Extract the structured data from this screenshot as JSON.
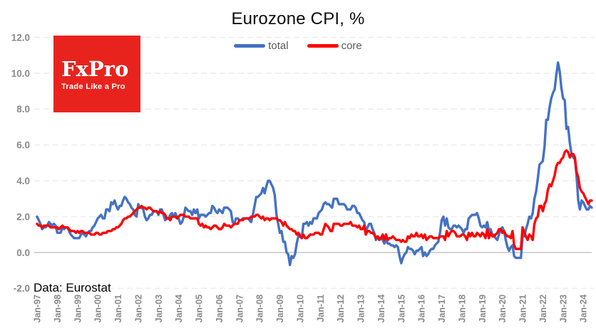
{
  "page": {
    "background": "#ffffff"
  },
  "logo": {
    "name": "FxPro",
    "tagline": "Trade Like a Pro",
    "bg_color": "#e8231e",
    "text_color": "#ffffff"
  },
  "chart_data": {
    "type": "line",
    "title": "Eurozone CPI, %",
    "source_note": "Data: Eurostat",
    "frequency": "monthly",
    "x_start": "Jan-1997",
    "x_end": "Jun-2024",
    "legend_position": "top-center",
    "grid": "horizontal-dashed",
    "ylim": [
      -2,
      12
    ],
    "y_ticks": [
      {
        "label": "-2.0",
        "value": -2
      },
      {
        "label": "0.0",
        "value": 0
      },
      {
        "label": "2.0",
        "value": 2
      },
      {
        "label": "4.0",
        "value": 4
      },
      {
        "label": "6.0",
        "value": 6
      },
      {
        "label": "8.0",
        "value": 8
      },
      {
        "label": "10.0",
        "value": 10
      },
      {
        "label": "12.0",
        "value": 12
      }
    ],
    "x_tick_labels": [
      "Jan-97",
      "Jan-98",
      "Jan-99",
      "Jan-00",
      "Jan-01",
      "Jan-02",
      "Jan-03",
      "Jan-04",
      "Jan-05",
      "Jan-06",
      "Jan-07",
      "Jan-08",
      "Jan-09",
      "Jan-10",
      "Jan-11",
      "Jan-12",
      "Jan-13",
      "Jan-14",
      "Jan-15",
      "Jan-16",
      "Jan-17",
      "Jan-18",
      "Jan-19",
      "Jan-20",
      "Jan-21",
      "Jan-22",
      "Jan-23",
      "Jan-24"
    ],
    "x_ticks_every_months": 12,
    "series": [
      {
        "name": "total",
        "color": "#4472C4",
        "values": [
          2.0,
          1.8,
          1.6,
          1.3,
          1.4,
          1.4,
          1.5,
          1.7,
          1.6,
          1.5,
          1.6,
          1.5,
          1.1,
          1.1,
          1.1,
          1.4,
          1.3,
          1.4,
          1.4,
          1.2,
          1.0,
          0.9,
          0.8,
          0.8,
          0.8,
          0.8,
          1.0,
          1.1,
          1.0,
          0.9,
          1.1,
          1.2,
          1.2,
          1.4,
          1.5,
          1.7,
          1.9,
          2.0,
          2.1,
          1.9,
          1.9,
          2.4,
          2.4,
          2.3,
          2.8,
          2.7,
          2.9,
          2.6,
          2.4,
          2.6,
          2.6,
          2.9,
          3.1,
          3.0,
          2.8,
          2.7,
          2.5,
          2.4,
          2.1,
          2.0,
          2.7,
          2.5,
          2.5,
          2.4,
          2.0,
          1.8,
          1.9,
          2.1,
          2.1,
          2.3,
          2.3,
          2.3,
          2.1,
          2.4,
          2.4,
          2.1,
          1.8,
          1.9,
          1.9,
          2.1,
          2.2,
          2.0,
          2.2,
          2.0,
          1.9,
          1.6,
          1.7,
          2.0,
          2.5,
          2.4,
          2.3,
          2.3,
          2.1,
          2.4,
          2.2,
          2.4,
          1.9,
          2.1,
          2.1,
          2.1,
          2.0,
          2.1,
          2.2,
          2.2,
          2.6,
          2.5,
          2.3,
          2.2,
          2.4,
          2.3,
          2.2,
          2.5,
          2.5,
          2.5,
          2.4,
          2.3,
          1.7,
          1.6,
          1.9,
          1.9,
          1.8,
          1.8,
          1.9,
          1.9,
          1.9,
          1.9,
          1.8,
          1.7,
          2.1,
          2.6,
          3.1,
          3.1,
          3.2,
          3.3,
          3.6,
          3.3,
          3.7,
          4.0,
          4.0,
          3.8,
          3.6,
          3.2,
          2.1,
          1.6,
          1.1,
          1.2,
          0.6,
          0.6,
          0.0,
          -0.1,
          -0.7,
          -0.2,
          -0.3,
          -0.1,
          0.5,
          0.9,
          1.0,
          0.8,
          1.6,
          1.6,
          1.7,
          1.5,
          1.7,
          1.6,
          1.9,
          1.9,
          1.9,
          2.2,
          2.3,
          2.4,
          2.7,
          2.8,
          2.7,
          2.7,
          2.6,
          2.5,
          3.0,
          3.0,
          3.0,
          2.7,
          2.7,
          2.7,
          2.7,
          2.6,
          2.4,
          2.4,
          2.4,
          2.6,
          2.6,
          2.5,
          2.2,
          2.2,
          2.0,
          1.8,
          1.7,
          1.2,
          1.4,
          1.6,
          1.6,
          1.3,
          1.1,
          0.7,
          0.9,
          0.8,
          0.8,
          0.7,
          0.5,
          0.7,
          0.5,
          0.5,
          0.4,
          0.4,
          0.3,
          0.4,
          0.3,
          -0.2,
          -0.6,
          -0.3,
          -0.1,
          0.0,
          0.3,
          0.2,
          0.2,
          0.1,
          -0.1,
          0.1,
          0.1,
          0.2,
          0.3,
          -0.2,
          0.0,
          -0.2,
          -0.1,
          0.1,
          0.2,
          0.2,
          0.4,
          0.5,
          0.6,
          1.1,
          1.8,
          2.0,
          1.5,
          1.9,
          1.4,
          1.3,
          1.3,
          1.5,
          1.5,
          1.4,
          1.5,
          1.4,
          1.3,
          1.1,
          1.3,
          1.3,
          1.9,
          2.0,
          2.1,
          2.1,
          2.1,
          2.2,
          1.9,
          1.5,
          1.4,
          1.5,
          1.4,
          1.7,
          1.2,
          1.3,
          1.0,
          1.0,
          0.8,
          0.7,
          1.0,
          1.3,
          1.4,
          1.2,
          0.7,
          0.3,
          0.1,
          0.3,
          0.4,
          -0.2,
          -0.3,
          -0.3,
          -0.3,
          -0.3,
          0.9,
          0.9,
          1.3,
          1.6,
          2.0,
          1.9,
          2.2,
          3.0,
          3.4,
          4.1,
          4.9,
          5.0,
          5.1,
          5.9,
          7.4,
          7.4,
          8.1,
          8.6,
          8.9,
          9.1,
          9.9,
          10.6,
          10.1,
          9.2,
          8.6,
          8.5,
          6.9,
          7.0,
          6.1,
          5.5,
          5.3,
          5.2,
          4.3,
          2.9,
          2.4,
          2.9,
          2.8,
          2.6,
          2.4,
          2.4,
          2.6,
          2.5
        ]
      },
      {
        "name": "core",
        "color": "#FF0000",
        "values": [
          1.6,
          1.5,
          1.5,
          1.4,
          1.5,
          1.5,
          1.5,
          1.5,
          1.4,
          1.4,
          1.4,
          1.4,
          1.4,
          1.3,
          1.4,
          1.5,
          1.4,
          1.4,
          1.4,
          1.3,
          1.2,
          1.2,
          1.2,
          1.1,
          1.2,
          1.1,
          1.2,
          1.2,
          1.1,
          1.1,
          1.1,
          1.1,
          1.0,
          1.0,
          1.0,
          1.1,
          1.1,
          1.0,
          1.0,
          1.1,
          1.1,
          1.1,
          1.2,
          1.2,
          1.2,
          1.3,
          1.3,
          1.4,
          1.4,
          1.5,
          1.6,
          1.8,
          1.9,
          1.9,
          2.0,
          2.0,
          2.1,
          2.2,
          2.3,
          2.4,
          2.5,
          2.5,
          2.6,
          2.5,
          2.5,
          2.4,
          2.5,
          2.5,
          2.4,
          2.3,
          2.3,
          2.3,
          2.2,
          2.3,
          2.2,
          2.2,
          2.1,
          1.9,
          1.9,
          1.8,
          2.0,
          2.0,
          2.0,
          1.9,
          2.0,
          2.1,
          2.1,
          2.1,
          2.0,
          2.0,
          2.0,
          1.9,
          1.9,
          1.9,
          1.9,
          1.9,
          1.6,
          1.5,
          1.6,
          1.4,
          1.5,
          1.4,
          1.4,
          1.3,
          1.4,
          1.5,
          1.5,
          1.4,
          1.3,
          1.3,
          1.4,
          1.6,
          1.5,
          1.5,
          1.5,
          1.4,
          1.5,
          1.6,
          1.6,
          1.6,
          1.8,
          1.8,
          1.8,
          1.9,
          1.9,
          1.9,
          1.9,
          2.0,
          2.0,
          2.0,
          2.1,
          2.1,
          2.0,
          1.9,
          2.0,
          1.8,
          1.9,
          1.9,
          1.8,
          1.9,
          1.9,
          1.9,
          1.9,
          1.8,
          1.8,
          1.7,
          1.5,
          1.7,
          1.5,
          1.4,
          1.3,
          1.3,
          1.2,
          1.2,
          1.0,
          1.1,
          0.9,
          0.8,
          1.0,
          0.8,
          0.8,
          0.9,
          1.0,
          1.0,
          1.0,
          1.1,
          1.1,
          1.1,
          1.0,
          1.0,
          1.3,
          1.6,
          1.5,
          1.4,
          1.2,
          1.2,
          1.6,
          1.6,
          1.6,
          1.6,
          1.5,
          1.5,
          1.6,
          1.6,
          1.6,
          1.6,
          1.7,
          1.5,
          1.5,
          1.5,
          1.4,
          1.5,
          1.3,
          1.3,
          1.5,
          1.0,
          1.2,
          1.2,
          1.1,
          1.1,
          1.0,
          0.8,
          0.9,
          0.7,
          0.8,
          1.0,
          0.7,
          1.0,
          0.7,
          0.8,
          0.8,
          0.9,
          0.8,
          0.7,
          0.7,
          0.7,
          0.6,
          0.7,
          0.6,
          0.6,
          0.9,
          0.8,
          1.0,
          0.9,
          0.9,
          1.1,
          0.9,
          0.9,
          1.0,
          0.8,
          1.0,
          0.7,
          0.8,
          0.9,
          0.9,
          0.8,
          0.8,
          0.8,
          0.8,
          0.9,
          0.9,
          0.9,
          0.7,
          1.2,
          0.9,
          1.1,
          1.2,
          1.2,
          1.1,
          0.9,
          0.9,
          0.9,
          1.0,
          1.0,
          0.9,
          0.7,
          1.1,
          0.9,
          1.1,
          0.9,
          0.9,
          1.1,
          1.0,
          0.9,
          1.1,
          1.0,
          0.8,
          1.3,
          0.8,
          1.1,
          0.9,
          0.9,
          1.0,
          1.1,
          1.3,
          1.3,
          1.1,
          1.2,
          1.0,
          0.9,
          0.9,
          0.8,
          1.2,
          0.4,
          0.2,
          0.2,
          0.2,
          0.2,
          1.4,
          1.1,
          0.9,
          0.7,
          1.0,
          0.9,
          0.7,
          1.6,
          1.9,
          2.0,
          2.6,
          2.6,
          2.3,
          2.7,
          2.9,
          3.5,
          3.8,
          3.7,
          4.0,
          4.3,
          4.8,
          5.0,
          5.0,
          5.2,
          5.3,
          5.6,
          5.7,
          5.6,
          5.3,
          5.5,
          5.5,
          5.3,
          4.5,
          4.2,
          3.6,
          3.4,
          3.3,
          3.1,
          2.9,
          2.7,
          2.9,
          2.9
        ]
      }
    ],
    "style": {
      "grid_color": "#ececec",
      "zero_axis_color": "#c6c6c6",
      "tick_label_color": "#8a8a8a",
      "legend_text_color": "#595959",
      "line_width": 3.4
    }
  }
}
